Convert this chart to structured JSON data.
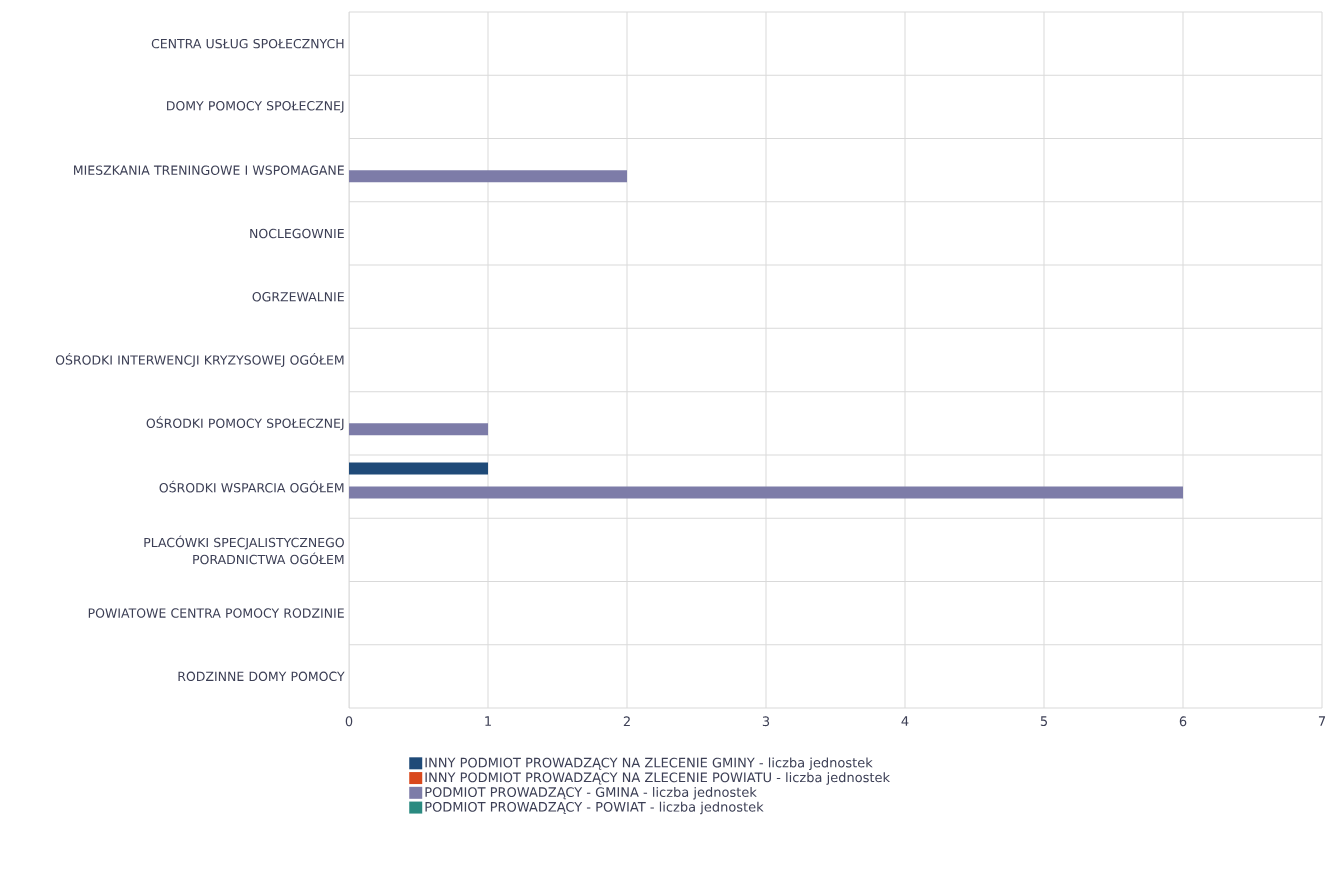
{
  "chart_data": {
    "type": "bar",
    "orientation": "horizontal",
    "categories": [
      "CENTRA USŁUG SPOŁECZNYCH",
      "DOMY POMOCY SPOŁECZNEJ",
      "MIESZKANIA TRENINGOWE I WSPOMAGANE",
      "NOCLEGOWNIE",
      "OGRZEWALNIE",
      "OŚRODKI INTERWENCJI KRYZYSOWEJ OGÓŁEM",
      "OŚRODKI POMOCY SPOŁECZNEJ",
      "OŚRODKI WSPARCIA OGÓŁEM",
      "PLACÓWKI SPECJALISTYCZNEGO PORADNICTWA OGÓŁEM",
      "POWIATOWE CENTRA POMOCY RODZINIE",
      "RODZINNE DOMY POMOCY"
    ],
    "series": [
      {
        "name": "INNY PODMIOT PROWADZĄCY NA ZLECENIE GMINY - liczba jednostek",
        "color": "#1f4a78",
        "values": [
          0,
          0,
          0,
          0,
          0,
          0,
          0,
          1,
          0,
          0,
          0
        ]
      },
      {
        "name": "INNY PODMIOT PROWADZĄCY NA ZLECENIE POWIATU - liczba jednostek",
        "color": "#d9481c",
        "values": [
          0,
          0,
          0,
          0,
          0,
          0,
          0,
          0,
          0,
          0,
          0
        ]
      },
      {
        "name": "PODMIOT PROWADZĄCY - GMINA - liczba jednostek",
        "color": "#7d7ca8",
        "values": [
          0,
          0,
          2,
          0,
          0,
          0,
          1,
          6,
          0,
          0,
          0
        ]
      },
      {
        "name": "PODMIOT PROWADZĄCY - POWIAT - liczba jednostek",
        "color": "#2a8a80",
        "values": [
          0,
          0,
          0,
          0,
          0,
          0,
          0,
          0,
          0,
          0,
          0
        ]
      }
    ],
    "xlim": [
      0,
      7
    ],
    "xticks": [
      0,
      1,
      2,
      3,
      4,
      5,
      6,
      7
    ],
    "grid": true,
    "legend": "bottom"
  }
}
